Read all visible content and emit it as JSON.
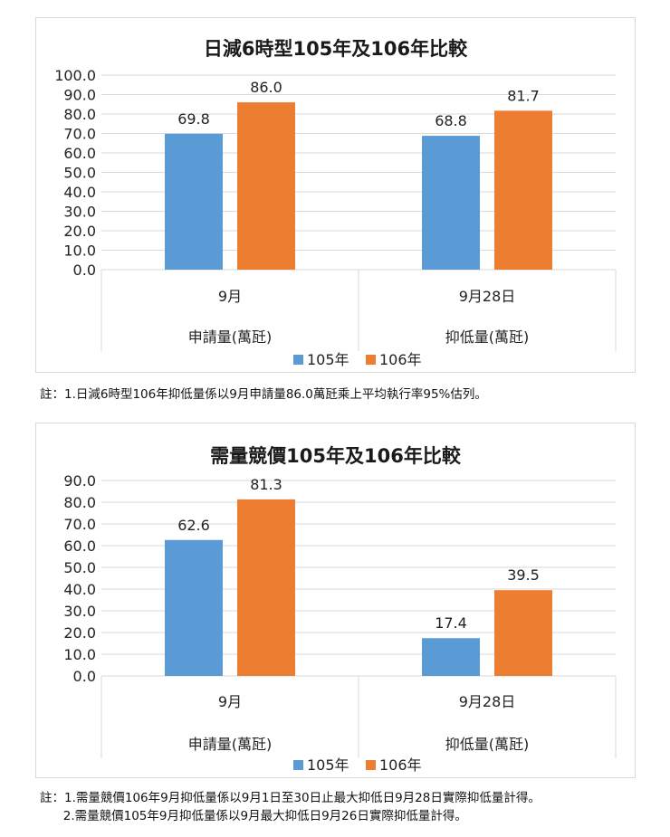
{
  "charts": [
    {
      "title": "日減6時型105年及106年比較",
      "note_lines": [
        "註：1.日減6時型106年抑低量係以9月申請量86.0萬瓩乘上平均執行率95%估列。"
      ],
      "chart_data": {
        "type": "bar",
        "title": "日減6時型105年及106年比較",
        "categories": [
          "9月",
          "9月28日"
        ],
        "group_labels": [
          "申請量(萬瓩)",
          "抑低量(萬瓩)"
        ],
        "series": [
          {
            "name": "105年",
            "values": [
              69.8,
              68.8
            ],
            "color": "#5b9bd5"
          },
          {
            "name": "106年",
            "values": [
              86.0,
              81.7
            ],
            "color": "#ed7d31"
          }
        ],
        "y_ticks": [
          "0.0",
          "10.0",
          "20.0",
          "30.0",
          "40.0",
          "50.0",
          "60.0",
          "70.0",
          "80.0",
          "90.0",
          "100.0"
        ],
        "ylim": [
          0,
          100
        ],
        "grid": true,
        "legend": "bottom"
      }
    },
    {
      "title": "需量競價105年及106年比較",
      "note_lines": [
        "註：1.需量競價106年9月抑低量係以9月1日至30日止最大抑低日9月28日實際抑低量計得。",
        "      2.需量競價105年9月抑低量係以9月最大抑低日9月26日實際抑低量計得。"
      ],
      "chart_data": {
        "type": "bar",
        "title": "需量競價105年及106年比較",
        "categories": [
          "9月",
          "9月28日"
        ],
        "group_labels": [
          "申請量(萬瓩)",
          "抑低量(萬瓩)"
        ],
        "series": [
          {
            "name": "105年",
            "values": [
              62.6,
              17.4
            ],
            "color": "#5b9bd5"
          },
          {
            "name": "106年",
            "values": [
              81.3,
              39.5
            ],
            "color": "#ed7d31"
          }
        ],
        "y_ticks": [
          "0.0",
          "10.0",
          "20.0",
          "30.0",
          "40.0",
          "50.0",
          "60.0",
          "70.0",
          "80.0",
          "90.0"
        ],
        "ylim": [
          0,
          90
        ],
        "grid": true,
        "legend": "bottom"
      }
    }
  ]
}
